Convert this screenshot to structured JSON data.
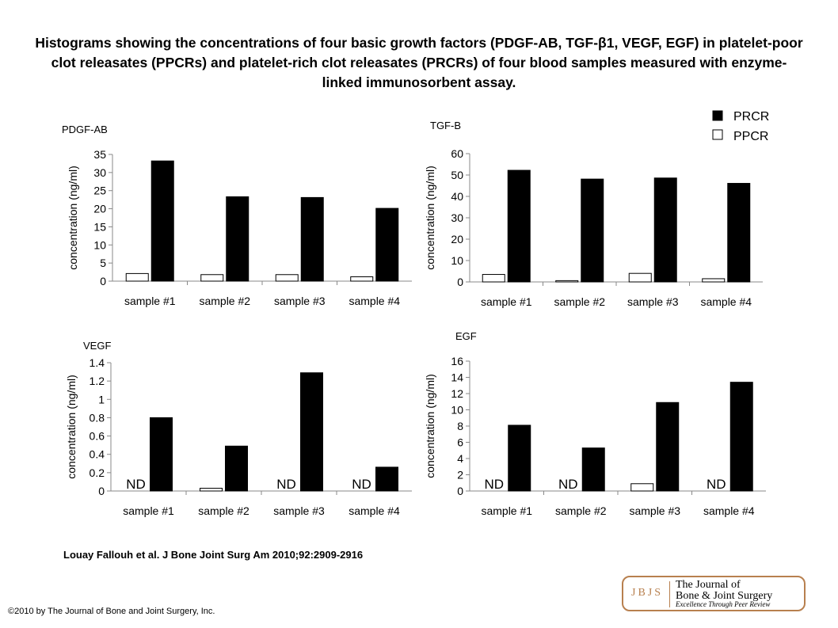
{
  "title": "Histograms showing the concentrations of four basic growth factors (PDGF-AB, TGF-β1, VEGF, EGF) in platelet-poor clot releasates (PPCRs) and platelet-rich clot releasates (PRCRs) of four blood samples measured with enzyme-linked immunosorbent assay.",
  "legend": {
    "prcr": "PRCR",
    "ppcr": "PPCR",
    "prcr_color": "#000000",
    "ppcr_color": "#ffffff"
  },
  "citation": "Louay Fallouh et al. J Bone Joint Surg Am 2010;92:2909-2916",
  "copyright": "©2010 by The Journal of Bone and Joint Surgery, Inc.",
  "logo": {
    "abbrev": "JBJS",
    "name_line1": "The Journal of",
    "name_line2": "Bone & Joint Surgery",
    "tagline": "Excellence Through Peer Review",
    "color": "#b8804f"
  },
  "chart_data": [
    {
      "type": "bar",
      "title": "PDGF-AB",
      "ylabel": "concentration (ng/ml)",
      "categories": [
        "sample #1",
        "sample #2",
        "sample #3",
        "sample #4"
      ],
      "ylim": [
        0,
        35
      ],
      "yticks": [
        "0",
        "5",
        "10",
        "15",
        "20",
        "25",
        "30",
        "35"
      ],
      "series": [
        {
          "name": "PPCR",
          "values": [
            2.1,
            1.8,
            1.8,
            1.2
          ]
        },
        {
          "name": "PRCR",
          "values": [
            33.2,
            23.3,
            23.1,
            20.1
          ]
        }
      ]
    },
    {
      "type": "bar",
      "title": "TGF-B",
      "ylabel": "concentration (ng/ml)",
      "categories": [
        "sample #1",
        "sample #2",
        "sample #3",
        "sample #4"
      ],
      "ylim": [
        0,
        60
      ],
      "yticks": [
        "0",
        "10",
        "20",
        "30",
        "40",
        "50",
        "60"
      ],
      "series": [
        {
          "name": "PPCR",
          "values": [
            3.5,
            0.6,
            4.0,
            1.5
          ]
        },
        {
          "name": "PRCR",
          "values": [
            52.2,
            48.1,
            48.6,
            46.1
          ]
        }
      ]
    },
    {
      "type": "bar",
      "title": "VEGF",
      "ylabel": "concentration (ng/ml)",
      "categories": [
        "sample #1",
        "sample #2",
        "sample #3",
        "sample #4"
      ],
      "ylim": [
        0,
        1.4
      ],
      "yticks": [
        "0",
        "0.2",
        "0.4",
        "0.6",
        "0.8",
        "1",
        "1.2",
        "1.4"
      ],
      "series": [
        {
          "name": "PPCR",
          "values": [
            null,
            0.03,
            null,
            null
          ]
        },
        {
          "name": "PRCR",
          "values": [
            0.8,
            0.49,
            1.29,
            0.26
          ]
        }
      ],
      "annotations": [
        "ND",
        null,
        "ND",
        "ND"
      ]
    },
    {
      "type": "bar",
      "title": "EGF",
      "ylabel": "concentration (ng/ml)",
      "categories": [
        "sample #1",
        "sample #2",
        "sample #3",
        "sample #4"
      ],
      "ylim": [
        0,
        16
      ],
      "yticks": [
        "0",
        "2",
        "4",
        "6",
        "8",
        "10",
        "12",
        "14",
        "16"
      ],
      "series": [
        {
          "name": "PPCR",
          "values": [
            null,
            null,
            0.9,
            null
          ]
        },
        {
          "name": "PRCR",
          "values": [
            8.1,
            5.3,
            10.9,
            13.4
          ]
        }
      ],
      "annotations": [
        "ND",
        "ND",
        null,
        "ND"
      ]
    }
  ]
}
